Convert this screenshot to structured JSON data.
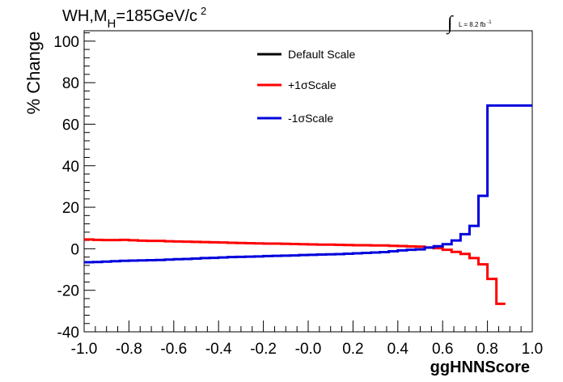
{
  "chart_data": {
    "type": "line",
    "title_main": "WH,M",
    "title_sub": "H",
    "title_rest": "=185GeV/c",
    "title_sup": "2",
    "lumi_integral": "∫",
    "lumi_text": "L = 8.2 fb",
    "lumi_sup": "-1",
    "xlabel": "ggHNNScore",
    "ylabel": "% Change",
    "xlim": [
      -1.0,
      1.0
    ],
    "ylim": [
      -40,
      105
    ],
    "x_ticks": [
      -1.0,
      -0.8,
      -0.6,
      -0.4,
      -0.2,
      0.0,
      0.2,
      0.4,
      0.6,
      0.8,
      1.0
    ],
    "x_tick_labels": [
      "-1.0",
      "-0.8",
      "-0.6",
      "-0.4",
      "-0.2",
      "-0.0",
      "0.2",
      "0.4",
      "0.6",
      "0.8",
      "1.0"
    ],
    "y_ticks": [
      -40,
      -20,
      0,
      20,
      40,
      60,
      80,
      100
    ],
    "y_tick_labels": [
      "-40",
      "-20",
      "0",
      "20",
      "40",
      "60",
      "80",
      "100"
    ],
    "bin_edges_start": -1.0,
    "bin_width": 0.04,
    "legend_position": "top-center",
    "series": [
      {
        "name": "Default Scale",
        "color": "#000000",
        "values": []
      },
      {
        "name": "+1σScale",
        "color": "#ff0000",
        "values": [
          4.5,
          4.3,
          4.2,
          4.2,
          4.3,
          4.1,
          3.9,
          3.8,
          3.8,
          3.6,
          3.5,
          3.4,
          3.3,
          3.2,
          3.1,
          3.0,
          2.9,
          2.8,
          2.7,
          2.6,
          2.5,
          2.5,
          2.4,
          2.3,
          2.2,
          2.1,
          2.0,
          2.0,
          1.9,
          1.8,
          1.7,
          1.7,
          1.6,
          1.6,
          1.4,
          1.3,
          1.1,
          1.0,
          0.6,
          0.3,
          -0.5,
          -1.5,
          -2.5,
          -4.5,
          -7.5,
          -14.5,
          -26.5
        ]
      },
      {
        "name": "-1σScale",
        "color": "#0000dd",
        "values": [
          -6.5,
          -6.4,
          -6.2,
          -6.0,
          -5.8,
          -5.7,
          -5.6,
          -5.5,
          -5.4,
          -5.2,
          -5.0,
          -4.9,
          -4.7,
          -4.5,
          -4.4,
          -4.2,
          -4.0,
          -3.9,
          -3.8,
          -3.7,
          -3.5,
          -3.4,
          -3.3,
          -3.2,
          -3.0,
          -2.9,
          -2.8,
          -2.7,
          -2.6,
          -2.4,
          -2.2,
          -2.0,
          -1.8,
          -1.6,
          -1.2,
          -0.8,
          -0.5,
          -0.3,
          0.6,
          1.2,
          2.2,
          4.0,
          7.0,
          11.0,
          25.5,
          69.0
        ]
      }
    ]
  }
}
